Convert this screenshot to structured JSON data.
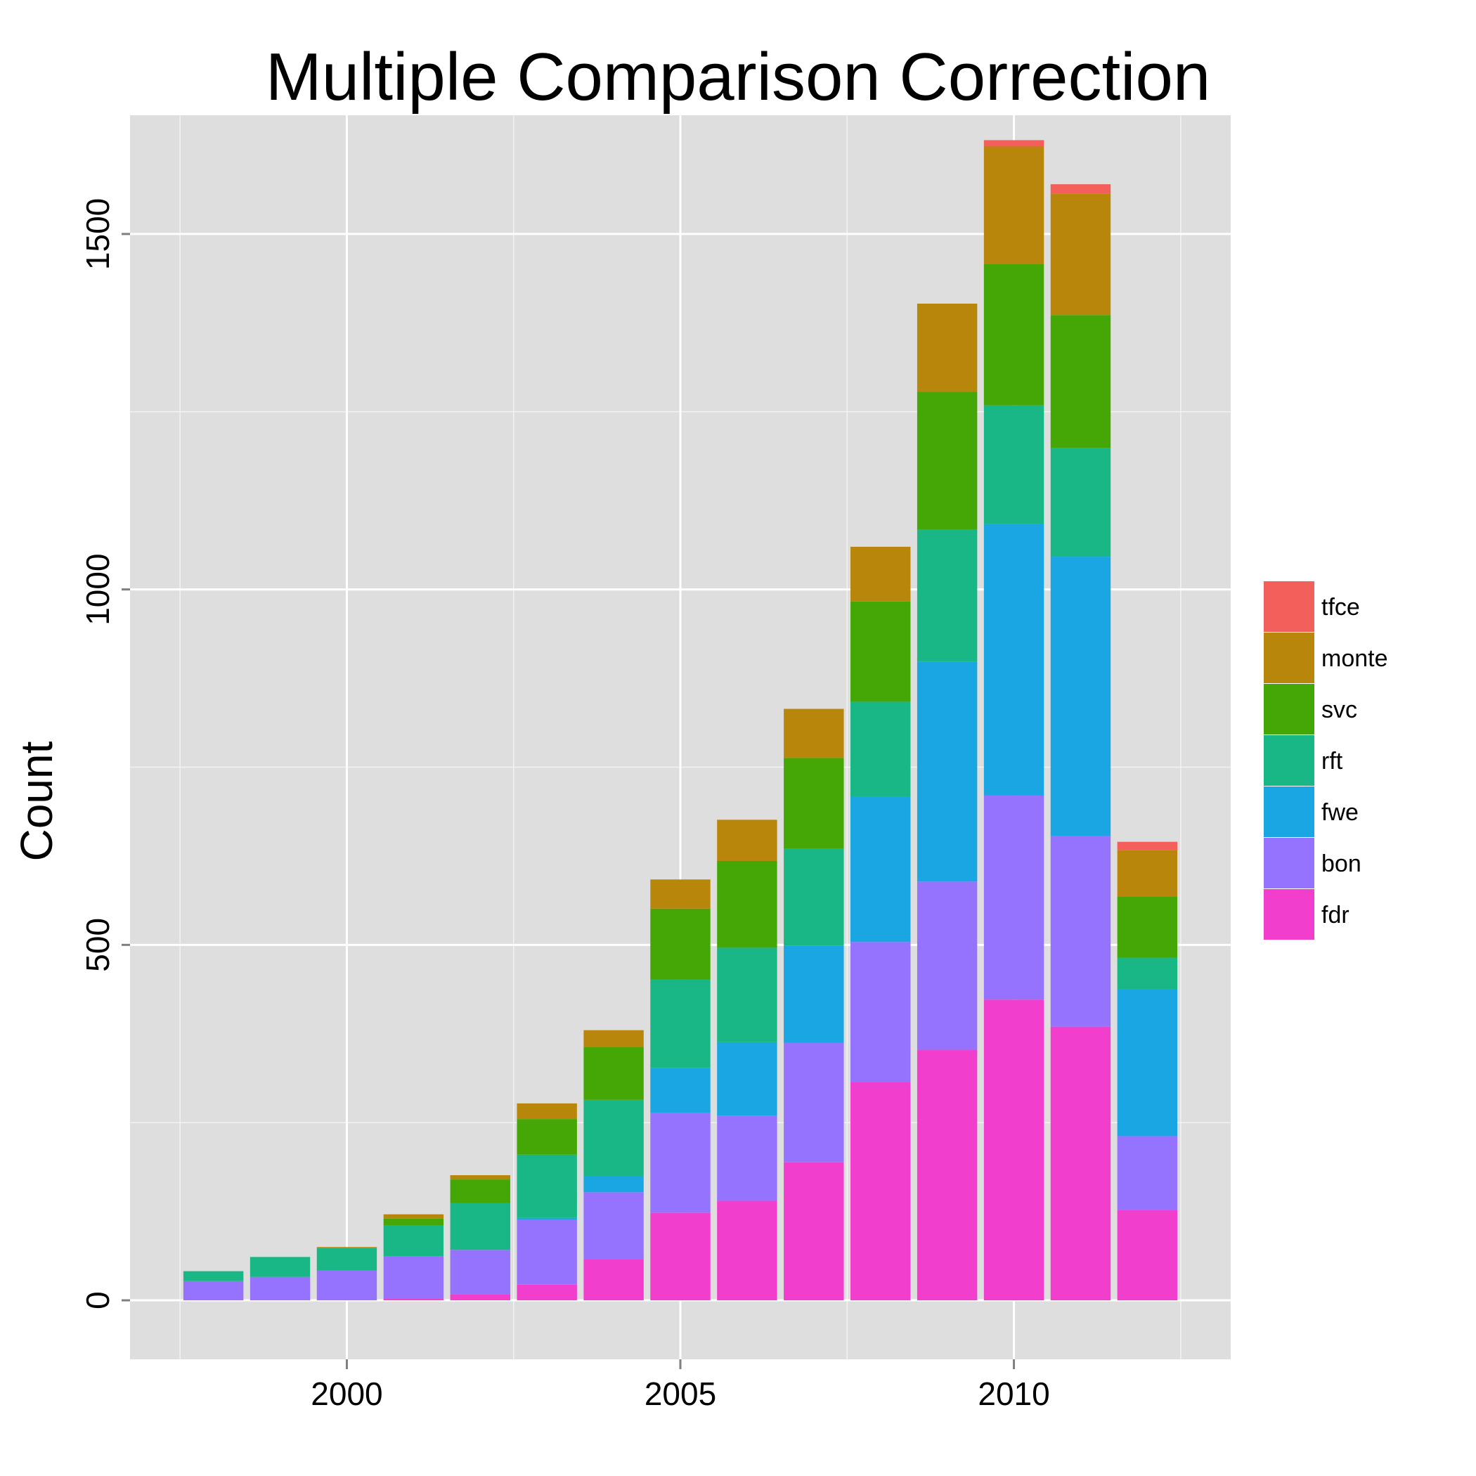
{
  "chart_data": {
    "type": "bar",
    "stacked": true,
    "title": "Multiple Comparison Correction",
    "xlabel": "",
    "ylabel": "Count",
    "x": [
      1998,
      1999,
      2000,
      2001,
      2002,
      2003,
      2004,
      2005,
      2006,
      2007,
      2008,
      2009,
      2010,
      2011,
      2012
    ],
    "xticks": [
      "2000",
      "2005",
      "2010"
    ],
    "yticks": [
      "0",
      "500",
      "1000",
      "1500"
    ],
    "xlim": [
      1996.75,
      2013.25
    ],
    "ylim": [
      -83,
      1667
    ],
    "grid": true,
    "legend_position": "right",
    "series": [
      {
        "name": "fdr",
        "color": "#F23ECC",
        "values": [
          0,
          0,
          0,
          2,
          8,
          22,
          58,
          123,
          140,
          194,
          307,
          352,
          423,
          385,
          127
        ]
      },
      {
        "name": "bon",
        "color": "#9673FF",
        "values": [
          27,
          33,
          42,
          60,
          63,
          91,
          94,
          141,
          120,
          168,
          197,
          237,
          287,
          268,
          104
        ]
      },
      {
        "name": "fwe",
        "color": "#19A6E3",
        "values": [
          0,
          0,
          0,
          0,
          0,
          3,
          23,
          63,
          103,
          137,
          204,
          309,
          382,
          393,
          207
        ]
      },
      {
        "name": "rft",
        "color": "#18B785",
        "values": [
          14,
          28,
          32,
          43,
          66,
          89,
          107,
          124,
          133,
          136,
          134,
          186,
          167,
          153,
          44
        ]
      },
      {
        "name": "svc",
        "color": "#45A705",
        "values": [
          0,
          0,
          0,
          10,
          33,
          50,
          74,
          100,
          122,
          128,
          141,
          194,
          199,
          187,
          86
        ]
      },
      {
        "name": "monte",
        "color": "#B8860B",
        "values": [
          0,
          0,
          1,
          6,
          6,
          22,
          24,
          41,
          58,
          69,
          77,
          124,
          165,
          171,
          65
        ]
      },
      {
        "name": "tfce",
        "color": "#F3605C",
        "values": [
          0,
          0,
          0,
          0,
          0,
          0,
          0,
          0,
          0,
          0,
          0,
          0,
          9,
          13,
          12
        ]
      }
    ],
    "legend_order": [
      "tfce",
      "monte",
      "svc",
      "rft",
      "fwe",
      "bon",
      "fdr"
    ]
  }
}
